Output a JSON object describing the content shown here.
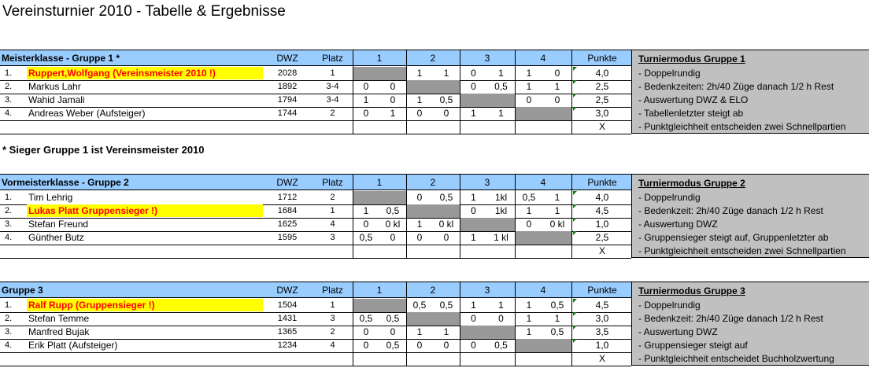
{
  "title": "Vereinsturnier 2010 - Tabelle & Ergebnisse",
  "note": "* Sieger Gruppe 1 ist Vereinsmeister 2010",
  "columns": {
    "dwz": "DWZ",
    "platz": "Platz",
    "r1": "1",
    "r2": "2",
    "r3": "3",
    "r4": "4",
    "punkte": "Punkte"
  },
  "groups": [
    {
      "name": "Meisterklasse - Gruppe 1 *",
      "mode_title": "Turniermodus Gruppe 1",
      "mode_items": [
        "- Doppelrundig",
        "- Bedenkzeiten: 2h/40 Züge danach 1/2 h Rest",
        "- Auswertung DWZ & ELO",
        "- Tabellenletzter steigt ab",
        "- Punktgleichheit entscheiden zwei Schnellpartien"
      ],
      "players": [
        {
          "nr": "1.",
          "name": "Ruppert,Wolfgang (Vereinsmeister 2010 !)",
          "hl": true,
          "dwz": "2028",
          "platz": "1",
          "res": [
            [
              "",
              ""
            ],
            [
              "1",
              "1"
            ],
            [
              "0",
              "1"
            ],
            [
              "1",
              "0"
            ]
          ],
          "punkte": "4,0"
        },
        {
          "nr": "2.",
          "name": "Markus Lahr",
          "hl": false,
          "dwz": "1892",
          "platz": "3-4",
          "res": [
            [
              "0",
              "0"
            ],
            [
              "",
              ""
            ],
            [
              "0",
              "0,5"
            ],
            [
              "1",
              "1"
            ]
          ],
          "punkte": "2,5"
        },
        {
          "nr": "3.",
          "name": "Wahid Jamali",
          "hl": false,
          "dwz": "1794",
          "platz": "3-4",
          "res": [
            [
              "1",
              "0"
            ],
            [
              "1",
              "0,5"
            ],
            [
              "",
              ""
            ],
            [
              "0",
              "0"
            ]
          ],
          "punkte": "2,5"
        },
        {
          "nr": "4.",
          "name": "Andreas Weber (Aufsteiger)",
          "hl": false,
          "dwz": "1744",
          "platz": "2",
          "res": [
            [
              "0",
              "1"
            ],
            [
              "0",
              "0"
            ],
            [
              "1",
              "1"
            ],
            [
              "",
              ""
            ]
          ],
          "punkte": "3,0"
        }
      ],
      "x_mark": "X"
    },
    {
      "name": "Vormeisterklasse - Gruppe 2",
      "mode_title": "Turniermodus Gruppe 2",
      "mode_items": [
        "- Doppelrundig",
        "- Bedenkzeit: 2h/40 Züge danach 1/2 h Rest",
        "- Auswertung DWZ",
        "- Gruppensieger steigt auf, Gruppenletzter ab",
        "- Punktgleichheit entscheiden zwei Schnellpartien"
      ],
      "players": [
        {
          "nr": "1.",
          "name": "Tim Lehrig",
          "hl": false,
          "dwz": "1712",
          "platz": "2",
          "res": [
            [
              "",
              ""
            ],
            [
              "0",
              "0,5"
            ],
            [
              "1",
              "1kl"
            ],
            [
              "0,5",
              "1"
            ]
          ],
          "punkte": "4,0"
        },
        {
          "nr": "2.",
          "name": "Lukas Platt Gruppensieger !)",
          "hl": true,
          "dwz": "1684",
          "platz": "1",
          "res": [
            [
              "1",
              "0,5"
            ],
            [
              "",
              ""
            ],
            [
              "0",
              "1kl"
            ],
            [
              "1",
              "1"
            ]
          ],
          "punkte": "4,5"
        },
        {
          "nr": "3.",
          "name": "Stefan Freund",
          "hl": false,
          "dwz": "1625",
          "platz": "4",
          "res": [
            [
              "0",
              "0 kl"
            ],
            [
              "1",
              "0 kl"
            ],
            [
              "",
              ""
            ],
            [
              "0",
              "0 kl"
            ]
          ],
          "punkte": "1,0"
        },
        {
          "nr": "4.",
          "name": "Günther Butz",
          "hl": false,
          "dwz": "1595",
          "platz": "3",
          "res": [
            [
              "0,5",
              "0"
            ],
            [
              "0",
              "0"
            ],
            [
              "1",
              "1 kl"
            ],
            [
              "",
              ""
            ]
          ],
          "punkte": "2,5"
        }
      ],
      "x_mark": "X"
    },
    {
      "name": "Gruppe 3",
      "mode_title": "Turniermodus Gruppe 3",
      "mode_items": [
        "- Doppelrundig",
        "- Bedenkzeit: 2h/40 Züge danach 1/2 h Rest",
        "- Auswertung DWZ",
        "- Gruppensieger steigt auf",
        "- Punktgleichheit entscheidet Buchholzwertung"
      ],
      "players": [
        {
          "nr": "1.",
          "name": "Ralf Rupp (Gruppensieger !)",
          "hl": true,
          "dwz": "1504",
          "platz": "1",
          "res": [
            [
              "",
              ""
            ],
            [
              "0,5",
              "0,5"
            ],
            [
              "1",
              "1"
            ],
            [
              "1",
              "0,5"
            ]
          ],
          "punkte": "4,5"
        },
        {
          "nr": "2.",
          "name": "Stefan Temme",
          "hl": false,
          "dwz": "1431",
          "platz": "3",
          "res": [
            [
              "0,5",
              "0,5"
            ],
            [
              "",
              ""
            ],
            [
              "0",
              "0"
            ],
            [
              "1",
              "1"
            ]
          ],
          "punkte": "3,0"
        },
        {
          "nr": "3.",
          "name": "Manfred Bujak",
          "hl": false,
          "dwz": "1365",
          "platz": "2",
          "res": [
            [
              "0",
              "0"
            ],
            [
              "1",
              "1"
            ],
            [
              "",
              ""
            ],
            [
              "1",
              "0,5"
            ]
          ],
          "punkte": "3,5"
        },
        {
          "nr": "4.",
          "name": "Erik Platt (Aufsteiger)",
          "hl": false,
          "dwz": "1234",
          "platz": "4",
          "res": [
            [
              "0",
              "0,5"
            ],
            [
              "0",
              "0"
            ],
            [
              "0",
              "0,5"
            ],
            [
              "",
              ""
            ]
          ],
          "punkte": "1,0"
        }
      ],
      "x_mark": "X"
    }
  ],
  "colors": {
    "header": "#99ccff",
    "self_cell": "#999999",
    "highlight": "#ffff00",
    "mode_bg": "#c0c0c0",
    "winner_text": "#ff0000"
  }
}
